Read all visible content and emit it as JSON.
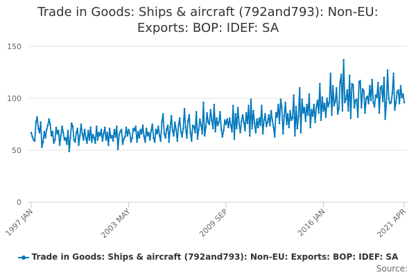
{
  "colors": {
    "series": "#0077bb",
    "grid": "#e6e6e6",
    "text": "#666666"
  },
  "chart_data": {
    "type": "line",
    "title": "Trade in Goods: Ships & aircraft (792and793): Non-EU: Exports: BOP: IDEF: SA",
    "xlabel": "",
    "ylabel": "",
    "ylim": [
      0,
      150
    ],
    "y_ticks": [
      "0",
      "50",
      "100",
      "150"
    ],
    "x_tick_labels": [
      "1997 JAN",
      "2003 MAY",
      "2009 SEP",
      "2016 JAN",
      "2021 APR"
    ],
    "x_start": "1997-01",
    "x_end": "2021-04",
    "grid": true,
    "legend_position": "bottom",
    "series": [
      {
        "name": "Trade in Goods: Ships & aircraft (792and793): Non-EU: Exports: BOP: IDEF: SA",
        "color": "#0077bb",
        "values": [
          67,
          63,
          60,
          59,
          77,
          82,
          71,
          67,
          77,
          53,
          58,
          68,
          62,
          70,
          74,
          80,
          75,
          64,
          68,
          57,
          60,
          72,
          66,
          69,
          55,
          64,
          73,
          67,
          60,
          62,
          56,
          69,
          49,
          62,
          76,
          73,
          60,
          58,
          67,
          71,
          55,
          64,
          75,
          66,
          60,
          70,
          62,
          57,
          69,
          60,
          72,
          58,
          65,
          62,
          57,
          73,
          60,
          67,
          64,
          70,
          59,
          66,
          72,
          60,
          67,
          55,
          71,
          62,
          64,
          59,
          70,
          63,
          73,
          51,
          65,
          68,
          70,
          56,
          61,
          63,
          72,
          64,
          70,
          66,
          58,
          62,
          71,
          69,
          73,
          58,
          68,
          62,
          70,
          66,
          74,
          63,
          58,
          71,
          64,
          67,
          60,
          69,
          75,
          62,
          58,
          70,
          66,
          73,
          64,
          59,
          77,
          85,
          66,
          62,
          70,
          74,
          58,
          72,
          83,
          69,
          64,
          77,
          70,
          59,
          74,
          81,
          68,
          63,
          71,
          90,
          72,
          62,
          78,
          84,
          67,
          59,
          74,
          73,
          67,
          87,
          61,
          70,
          80,
          74,
          66,
          96,
          64,
          72,
          86,
          77,
          75,
          89,
          79,
          71,
          94,
          68,
          81,
          74,
          77,
          87,
          70,
          63,
          69,
          79,
          75,
          80,
          72,
          81,
          74,
          68,
          93,
          61,
          85,
          71,
          91,
          76,
          67,
          78,
          84,
          77,
          69,
          86,
          76,
          93,
          64,
          99,
          71,
          88,
          76,
          67,
          80,
          72,
          81,
          74,
          93,
          66,
          79,
          85,
          73,
          77,
          84,
          74,
          88,
          79,
          72,
          63,
          86,
          82,
          94,
          76,
          99,
          91,
          66,
          83,
          96,
          75,
          85,
          72,
          88,
          79,
          81,
          103,
          64,
          92,
          71,
          83,
          110,
          67,
          99,
          86,
          91,
          78,
          94,
          84,
          104,
          72,
          89,
          83,
          94,
          77,
          92,
          98,
          86,
          114,
          79,
          101,
          88,
          95,
          82,
          100,
          92,
          96,
          124,
          84,
          112,
          93,
          97,
          110,
          85,
          90,
          115,
          123,
          88,
          137,
          96,
          99,
          108,
          88,
          122,
          81,
          114,
          113,
          91,
          98,
          99,
          82,
          116,
          117,
          91,
          109,
          107,
          86,
          100,
          102,
          95,
          112,
          98,
          118,
          96,
          92,
          103,
          101,
          115,
          86,
          110,
          112,
          97,
          120,
          80,
          96,
          127,
          100,
          95,
          96,
          105,
          124,
          89,
          96,
          106,
          108,
          95,
          112,
          101,
          104,
          96
        ]
      }
    ]
  },
  "legend": {
    "label": "Trade in Goods: Ships & aircraft (792and793): Non-EU: Exports: BOP: IDEF: SA"
  },
  "source": {
    "label": "Source:"
  }
}
